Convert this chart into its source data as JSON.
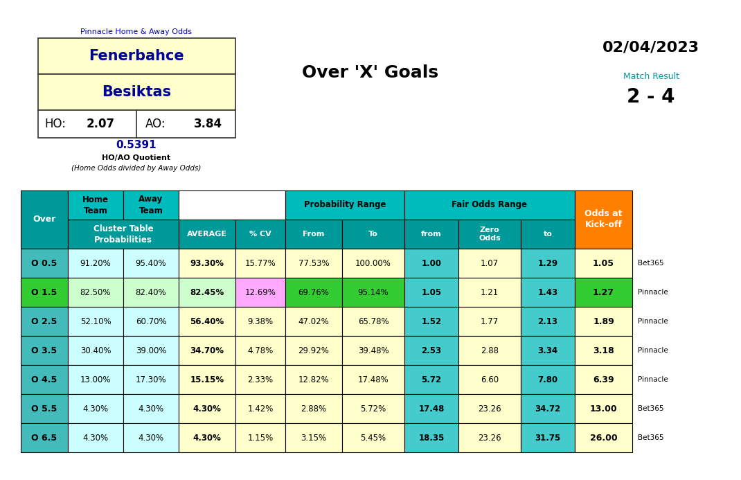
{
  "title_center": "Over 'X' Goals",
  "date": "02/04/2023",
  "match_result_label": "Match Result",
  "match_result": "2 - 4",
  "pinnacle_label": "Pinnacle Home & Away Odds",
  "home_team": "Fenerbahce",
  "away_team": "Besiktas",
  "ho_label": "HO:",
  "ho_value": "2.07",
  "ao_label": "AO:",
  "ao_value": "3.84",
  "quotient": "0.5391",
  "quotient_label": "HO/AO Quotient",
  "quotient_sublabel": "(Home Odds divided by Away Odds)",
  "rows": [
    {
      "over": "O 0.5",
      "home_prob": "91.20%",
      "away_prob": "95.40%",
      "average": "93.30%",
      "cv": "15.77%",
      "from": "77.53%",
      "to": "100.00%",
      "fair_from": "1.00",
      "fair_zero": "1.07",
      "fair_to": "1.29",
      "odds": "1.05",
      "bookmaker": "Bet365",
      "row_bg": "#ccffff",
      "average_bg": "#ffffcc",
      "cv_bg": "#ffffcc",
      "prob_from_bg": "#ffffcc",
      "prob_to_bg": "#ffffcc",
      "fair_from_bg": "#44cccc",
      "fair_zero_bg": "#ffffcc",
      "fair_to_bg": "#44cccc",
      "odds_bg": "#ffffcc",
      "over_bg": "#44bbbb"
    },
    {
      "over": "O 1.5",
      "home_prob": "82.50%",
      "away_prob": "82.40%",
      "average": "82.45%",
      "cv": "12.69%",
      "from": "69.76%",
      "to": "95.14%",
      "fair_from": "1.05",
      "fair_zero": "1.21",
      "fair_to": "1.43",
      "odds": "1.27",
      "bookmaker": "Pinnacle",
      "row_bg": "#ccffcc",
      "average_bg": "#ccffcc",
      "cv_bg": "#ffaaff",
      "prob_from_bg": "#33cc33",
      "prob_to_bg": "#33cc33",
      "fair_from_bg": "#44cccc",
      "fair_zero_bg": "#ffffcc",
      "fair_to_bg": "#44cccc",
      "odds_bg": "#33cc33",
      "over_bg": "#33cc33"
    },
    {
      "over": "O 2.5",
      "home_prob": "52.10%",
      "away_prob": "60.70%",
      "average": "56.40%",
      "cv": "9.38%",
      "from": "47.02%",
      "to": "65.78%",
      "fair_from": "1.52",
      "fair_zero": "1.77",
      "fair_to": "2.13",
      "odds": "1.89",
      "bookmaker": "Pinnacle",
      "row_bg": "#ccffff",
      "average_bg": "#ffffcc",
      "cv_bg": "#ffffcc",
      "prob_from_bg": "#ffffcc",
      "prob_to_bg": "#ffffcc",
      "fair_from_bg": "#44cccc",
      "fair_zero_bg": "#ffffcc",
      "fair_to_bg": "#44cccc",
      "odds_bg": "#ffffcc",
      "over_bg": "#44bbbb"
    },
    {
      "over": "O 3.5",
      "home_prob": "30.40%",
      "away_prob": "39.00%",
      "average": "34.70%",
      "cv": "4.78%",
      "from": "29.92%",
      "to": "39.48%",
      "fair_from": "2.53",
      "fair_zero": "2.88",
      "fair_to": "3.34",
      "odds": "3.18",
      "bookmaker": "Pinnacle",
      "row_bg": "#ccffff",
      "average_bg": "#ffffcc",
      "cv_bg": "#ffffcc",
      "prob_from_bg": "#ffffcc",
      "prob_to_bg": "#ffffcc",
      "fair_from_bg": "#44cccc",
      "fair_zero_bg": "#ffffcc",
      "fair_to_bg": "#44cccc",
      "odds_bg": "#ffffcc",
      "over_bg": "#44bbbb"
    },
    {
      "over": "O 4.5",
      "home_prob": "13.00%",
      "away_prob": "17.30%",
      "average": "15.15%",
      "cv": "2.33%",
      "from": "12.82%",
      "to": "17.48%",
      "fair_from": "5.72",
      "fair_zero": "6.60",
      "fair_to": "7.80",
      "odds": "6.39",
      "bookmaker": "Pinnacle",
      "row_bg": "#ccffff",
      "average_bg": "#ffffcc",
      "cv_bg": "#ffffcc",
      "prob_from_bg": "#ffffcc",
      "prob_to_bg": "#ffffcc",
      "fair_from_bg": "#44cccc",
      "fair_zero_bg": "#ffffcc",
      "fair_to_bg": "#44cccc",
      "odds_bg": "#ffffcc",
      "over_bg": "#44bbbb"
    },
    {
      "over": "O 5.5",
      "home_prob": "4.30%",
      "away_prob": "4.30%",
      "average": "4.30%",
      "cv": "1.42%",
      "from": "2.88%",
      "to": "5.72%",
      "fair_from": "17.48",
      "fair_zero": "23.26",
      "fair_to": "34.72",
      "odds": "13.00",
      "bookmaker": "Bet365",
      "row_bg": "#ccffff",
      "average_bg": "#ffffcc",
      "cv_bg": "#ffffcc",
      "prob_from_bg": "#ffffcc",
      "prob_to_bg": "#ffffcc",
      "fair_from_bg": "#44cccc",
      "fair_zero_bg": "#ffffcc",
      "fair_to_bg": "#44cccc",
      "odds_bg": "#ffffcc",
      "over_bg": "#44bbbb"
    },
    {
      "over": "O 6.5",
      "home_prob": "4.30%",
      "away_prob": "4.30%",
      "average": "4.30%",
      "cv": "1.15%",
      "from": "3.15%",
      "to": "5.45%",
      "fair_from": "18.35",
      "fair_zero": "23.26",
      "fair_to": "31.75",
      "odds": "26.00",
      "bookmaker": "Bet365",
      "row_bg": "#ccffff",
      "average_bg": "#ffffcc",
      "cv_bg": "#ffffcc",
      "prob_from_bg": "#ffffcc",
      "prob_to_bg": "#ffffcc",
      "fair_from_bg": "#44cccc",
      "fair_zero_bg": "#ffffcc",
      "fair_to_bg": "#44cccc",
      "odds_bg": "#ffffcc",
      "over_bg": "#44bbbb"
    }
  ],
  "teal_header": "#00BBBB",
  "teal_dark_header": "#009999",
  "orange_header": "#FF8000"
}
